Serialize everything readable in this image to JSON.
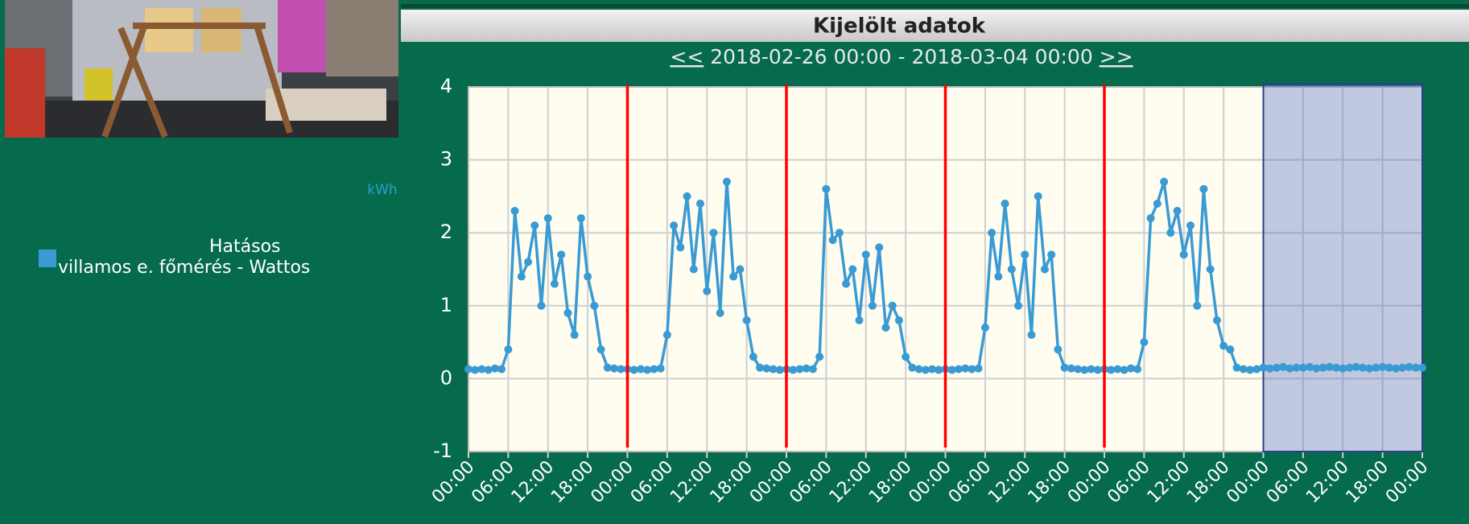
{
  "chart_data": {
    "type": "line",
    "title": "Kijelölt adatok",
    "nav_prev": "<<",
    "subtitle": "2018-02-26 00:00 - 2018-03-04 00:00",
    "nav_next": ">>",
    "y_label": "kWh",
    "xlim": [
      0,
      144
    ],
    "xticks": [
      {
        "value": 0,
        "label": "00:00"
      },
      {
        "value": 6,
        "label": "06:00"
      },
      {
        "value": 12,
        "label": "12:00"
      },
      {
        "value": 18,
        "label": "18:00"
      },
      {
        "value": 24,
        "label": "00:00"
      },
      {
        "value": 30,
        "label": "06:00"
      },
      {
        "value": 36,
        "label": "12:00"
      },
      {
        "value": 42,
        "label": "18:00"
      },
      {
        "value": 48,
        "label": "00:00"
      },
      {
        "value": 54,
        "label": "06:00"
      },
      {
        "value": 60,
        "label": "12:00"
      },
      {
        "value": 66,
        "label": "18:00"
      },
      {
        "value": 72,
        "label": "00:00"
      },
      {
        "value": 78,
        "label": "06:00"
      },
      {
        "value": 84,
        "label": "12:00"
      },
      {
        "value": 90,
        "label": "18:00"
      },
      {
        "value": 96,
        "label": "00:00"
      },
      {
        "value": 102,
        "label": "06:00"
      },
      {
        "value": 108,
        "label": "12:00"
      },
      {
        "value": 114,
        "label": "18:00"
      },
      {
        "value": 120,
        "label": "00:00"
      },
      {
        "value": 126,
        "label": "06:00"
      },
      {
        "value": 132,
        "label": "12:00"
      },
      {
        "value": 138,
        "label": "18:00"
      },
      {
        "value": 144,
        "label": "00:00"
      }
    ],
    "ylim": [
      -1,
      4
    ],
    "yticks": [
      -1,
      0,
      1,
      2,
      3,
      4
    ],
    "grid": true,
    "day_lines": [
      24,
      48,
      72,
      96
    ],
    "day_line_color": "#ff0000",
    "highlight": [
      120,
      144
    ],
    "highlight_color": "#4a66c0",
    "x": [
      0,
      1,
      2,
      3,
      4,
      5,
      6,
      7,
      8,
      9,
      10,
      11,
      12,
      13,
      14,
      15,
      16,
      17,
      18,
      19,
      20,
      21,
      22,
      23,
      24,
      25,
      26,
      27,
      28,
      29,
      30,
      31,
      32,
      33,
      34,
      35,
      36,
      37,
      38,
      39,
      40,
      41,
      42,
      43,
      44,
      45,
      46,
      47,
      48,
      49,
      50,
      51,
      52,
      53,
      54,
      55,
      56,
      57,
      58,
      59,
      60,
      61,
      62,
      63,
      64,
      65,
      66,
      67,
      68,
      69,
      70,
      71,
      72,
      73,
      74,
      75,
      76,
      77,
      78,
      79,
      80,
      81,
      82,
      83,
      84,
      85,
      86,
      87,
      88,
      89,
      90,
      91,
      92,
      93,
      94,
      95,
      96,
      97,
      98,
      99,
      100,
      101,
      102,
      103,
      104,
      105,
      106,
      107,
      108,
      109,
      110,
      111,
      112,
      113,
      114,
      115,
      116,
      117,
      118,
      119,
      120,
      121,
      122,
      123,
      124,
      125,
      126,
      127,
      128,
      129,
      130,
      131,
      132,
      133,
      134,
      135,
      136,
      137,
      138,
      139,
      140,
      141,
      142,
      143,
      144
    ],
    "series": [
      {
        "name": "Hatásos villamos e. főmérés - Wattos",
        "color": "#3a9ad3",
        "values": [
          0.13,
          0.12,
          0.13,
          0.12,
          0.14,
          0.13,
          0.4,
          2.3,
          1.4,
          1.6,
          2.1,
          1.0,
          2.2,
          1.3,
          1.7,
          0.9,
          0.6,
          2.2,
          1.4,
          1.0,
          0.4,
          0.15,
          0.14,
          0.13,
          0.13,
          0.12,
          0.13,
          0.12,
          0.13,
          0.14,
          0.6,
          2.1,
          1.8,
          2.5,
          1.5,
          2.4,
          1.2,
          2.0,
          0.9,
          2.7,
          1.4,
          1.5,
          0.8,
          0.3,
          0.15,
          0.14,
          0.13,
          0.12,
          0.13,
          0.12,
          0.13,
          0.14,
          0.13,
          0.3,
          2.6,
          1.9,
          2.0,
          1.3,
          1.5,
          0.8,
          1.7,
          1.0,
          1.8,
          0.7,
          1.0,
          0.8,
          0.3,
          0.15,
          0.13,
          0.12,
          0.13,
          0.12,
          0.13,
          0.12,
          0.13,
          0.14,
          0.13,
          0.14,
          0.7,
          2.0,
          1.4,
          2.4,
          1.5,
          1.0,
          1.7,
          0.6,
          2.5,
          1.5,
          1.7,
          0.4,
          0.15,
          0.14,
          0.13,
          0.12,
          0.13,
          0.12,
          0.13,
          0.12,
          0.13,
          0.12,
          0.14,
          0.13,
          0.5,
          2.2,
          2.4,
          2.7,
          2.0,
          2.3,
          1.7,
          2.1,
          1.0,
          2.6,
          1.5,
          0.8,
          0.45,
          0.4,
          0.15,
          0.13,
          0.12,
          0.13,
          0.15,
          0.14,
          0.15,
          0.16,
          0.14,
          0.15,
          0.15,
          0.16,
          0.14,
          0.15,
          0.16,
          0.15,
          0.14,
          0.15,
          0.16,
          0.15,
          0.14,
          0.15,
          0.16,
          0.15,
          0.14,
          0.15,
          0.16,
          0.15,
          0.15
        ]
      }
    ]
  }
}
